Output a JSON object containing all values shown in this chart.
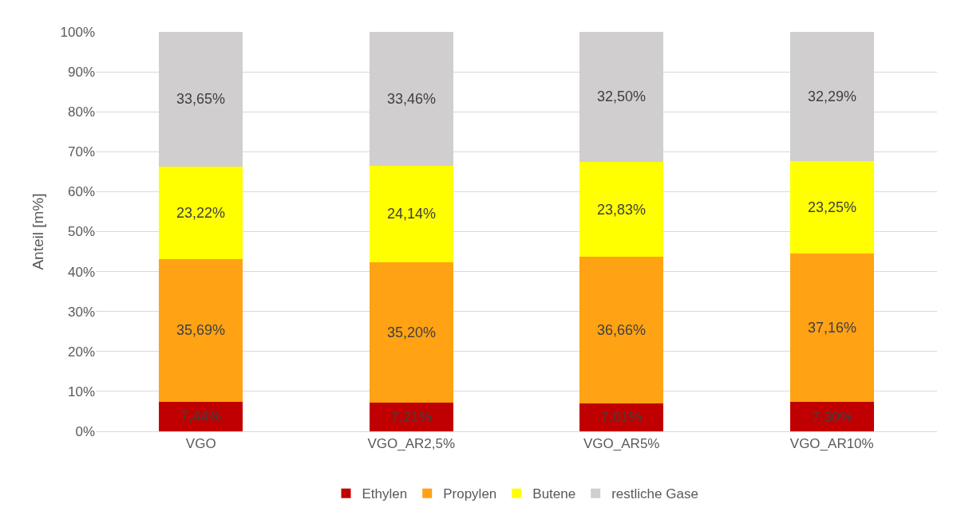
{
  "chart_data": {
    "type": "bar",
    "stacked": true,
    "ylabel": "Anteil [m%]",
    "categories": [
      "VGO",
      "VGO_AR2,5%",
      "VGO_AR5%",
      "VGO_AR10%"
    ],
    "series": [
      {
        "name": "Ethylen",
        "color": "#c00000",
        "values": [
          7.44,
          7.21,
          7.01,
          7.3
        ],
        "value_labels": [
          "7,44%",
          "7,21%",
          "7,01%",
          "7,30%"
        ]
      },
      {
        "name": "Propylen",
        "color": "#ffa214",
        "values": [
          35.69,
          35.2,
          36.66,
          37.16
        ],
        "value_labels": [
          "35,69%",
          "35,20%",
          "36,66%",
          "37,16%"
        ]
      },
      {
        "name": "Butene",
        "color": "#ffff00",
        "values": [
          23.22,
          24.14,
          23.83,
          23.25
        ],
        "value_labels": [
          "23,22%",
          "24,14%",
          "23,83%",
          "23,25%"
        ]
      },
      {
        "name": "restliche Gase",
        "color": "#d0cece",
        "values": [
          33.65,
          33.46,
          32.5,
          32.29
        ],
        "value_labels": [
          "33,65%",
          "33,46%",
          "32,50%",
          "32,29%"
        ]
      }
    ],
    "ylim": [
      0,
      100
    ],
    "yticks": [
      {
        "value": 0,
        "label": "0%"
      },
      {
        "value": 10,
        "label": "10%"
      },
      {
        "value": 20,
        "label": "20%"
      },
      {
        "value": 30,
        "label": "30%"
      },
      {
        "value": 40,
        "label": "40%"
      },
      {
        "value": 50,
        "label": "50%"
      },
      {
        "value": 60,
        "label": "60%"
      },
      {
        "value": 70,
        "label": "70%"
      },
      {
        "value": 80,
        "label": "80%"
      },
      {
        "value": 90,
        "label": "90%"
      },
      {
        "value": 100,
        "label": "100%"
      }
    ],
    "grid": "y",
    "legend": "bottom"
  }
}
